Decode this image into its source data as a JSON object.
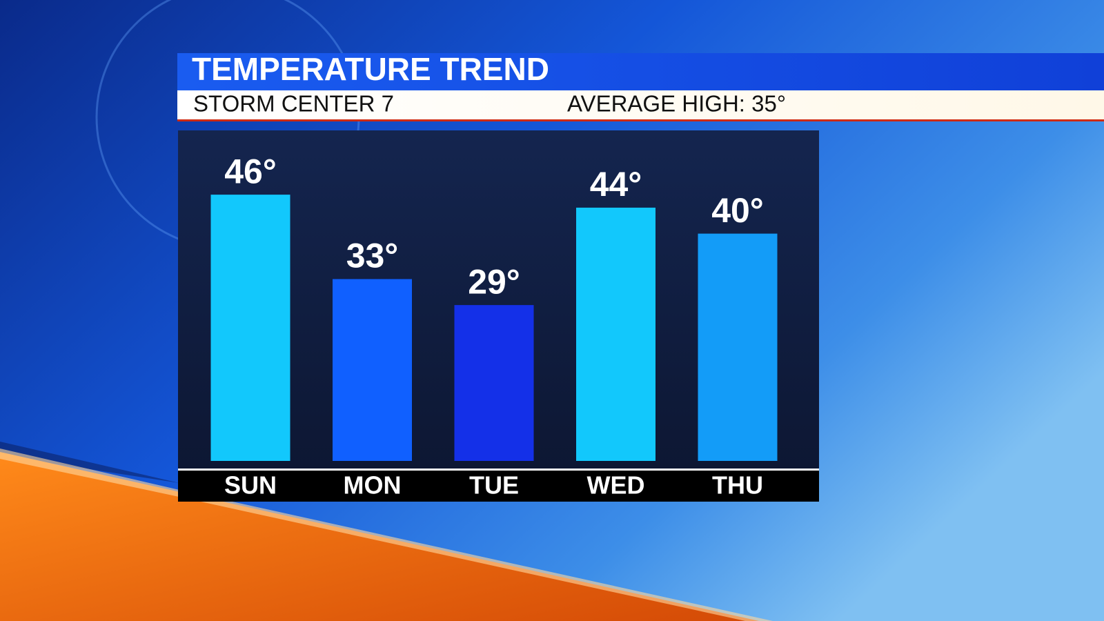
{
  "chart_data": {
    "type": "bar",
    "title": "TEMPERATURE TREND",
    "subtitle": "STORM CENTER 7",
    "annotation": "AVERAGE HIGH: 35°",
    "categories": [
      "SUN",
      "MON",
      "TUE",
      "WED",
      "THU"
    ],
    "values": [
      46,
      33,
      29,
      44,
      40
    ],
    "value_labels": [
      "46°",
      "33°",
      "29°",
      "44°",
      "40°"
    ],
    "colors": [
      "#12c8fc",
      "#1060ff",
      "#1430e8",
      "#12c8fc",
      "#139cf8"
    ],
    "ylim": [
      5,
      56
    ]
  }
}
